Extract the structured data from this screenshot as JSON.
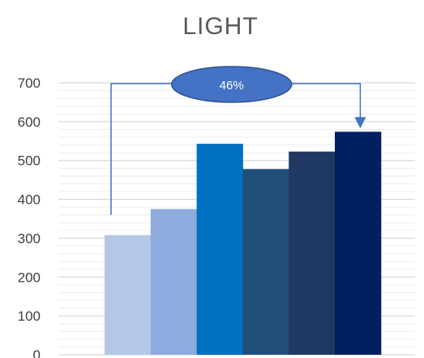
{
  "chart_data": {
    "type": "bar",
    "title": "LIGHT",
    "xlabel": "",
    "ylabel": "",
    "ylim": [
      0,
      700
    ],
    "yticks": [
      0,
      100,
      200,
      300,
      400,
      500,
      600,
      700
    ],
    "grid": true,
    "categories": [
      "",
      "",
      "",
      "",
      "",
      ""
    ],
    "values": [
      308,
      375,
      543,
      478,
      523,
      574
    ],
    "bar_colors": [
      "#b4c7e7",
      "#8faadc",
      "#0070c0",
      "#1f4e79",
      "#203864",
      "#002060"
    ],
    "callout": {
      "label": "46%",
      "from_bar": 0,
      "to_bar": 5,
      "color": "#4472c4"
    }
  }
}
